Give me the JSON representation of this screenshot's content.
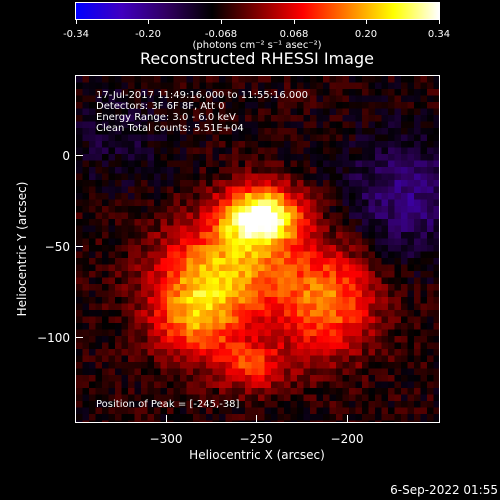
{
  "colorbar": {
    "ticks": [
      "-0.34",
      "-0.20",
      "-0.068",
      "0.068",
      "0.20",
      "0.34"
    ],
    "units": "(photons cm⁻² s⁻¹ asec⁻²)",
    "colors": [
      "#0000ff",
      "#4000c0",
      "#300060",
      "#000000",
      "#800000",
      "#ff0000",
      "#ff8000",
      "#ffff00",
      "#ffffff"
    ]
  },
  "plot": {
    "title": "Reconstructed RHESSI Image",
    "info_lines": [
      "17-Jul-2017 11:49:16.000 to 11:55:16.000",
      "Detectors: 3F 6F 8F, Att 0",
      "Energy Range: 3.0 - 6.0 keV",
      "Clean     Total counts: 5.51E+04"
    ],
    "peak_label": "Position of Peak = [-245,-38]",
    "xlabel": "Heliocentric X (arcsec)",
    "ylabel": "Heliocentric Y (arcsec)",
    "xticks": [
      "−300",
      "−250",
      "−200"
    ],
    "yticks": [
      "0",
      "−50",
      "−100"
    ]
  },
  "footer": {
    "date": "6-Sep-2022 01:55"
  }
}
